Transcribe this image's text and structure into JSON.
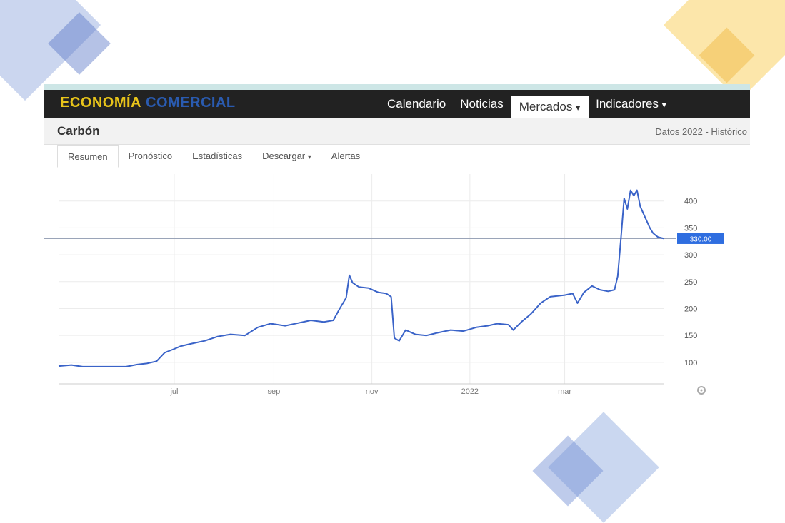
{
  "header": {
    "brand_part1": "ECONOMÍA",
    "brand_part2": "COMERCIAL",
    "nav": [
      "Calendario",
      "Noticias",
      "Mercados",
      "Indicadores"
    ],
    "nav_dropdown_marker": "▾"
  },
  "page": {
    "title": "Carbón",
    "meta": "Datos 2022 - Histórico"
  },
  "tabs": [
    "Resumen",
    "Pronóstico",
    "Estadísticas",
    "Descargar",
    "Alertas"
  ],
  "chart_data": {
    "type": "line",
    "current_value_label": "330.00",
    "current_value": 330,
    "y_ticks": [
      100,
      150,
      200,
      250,
      300,
      350,
      400
    ],
    "ylim": [
      60,
      450
    ],
    "x_ticks": [
      {
        "label": "jul",
        "date": "2021-07-01"
      },
      {
        "label": "sep",
        "date": "2021-09-01"
      },
      {
        "label": "nov",
        "date": "2021-11-01"
      },
      {
        "label": "2022",
        "date": "2022-01-01"
      },
      {
        "label": "mar",
        "date": "2022-03-01"
      }
    ],
    "xlim": [
      "2021-04-20",
      "2022-04-15"
    ],
    "grid": true,
    "series": [
      {
        "color": "#3a63c8",
        "points": [
          [
            "2021-04-20",
            93
          ],
          [
            "2021-04-28",
            95
          ],
          [
            "2021-05-05",
            92
          ],
          [
            "2021-05-20",
            92
          ],
          [
            "2021-06-01",
            92
          ],
          [
            "2021-06-08",
            96
          ],
          [
            "2021-06-14",
            98
          ],
          [
            "2021-06-20",
            102
          ],
          [
            "2021-06-25",
            118
          ],
          [
            "2021-07-01",
            125
          ],
          [
            "2021-07-05",
            130
          ],
          [
            "2021-07-12",
            135
          ],
          [
            "2021-07-20",
            140
          ],
          [
            "2021-07-28",
            148
          ],
          [
            "2021-08-05",
            152
          ],
          [
            "2021-08-14",
            150
          ],
          [
            "2021-08-22",
            165
          ],
          [
            "2021-08-30",
            172
          ],
          [
            "2021-09-08",
            168
          ],
          [
            "2021-09-16",
            173
          ],
          [
            "2021-09-24",
            178
          ],
          [
            "2021-10-02",
            175
          ],
          [
            "2021-10-08",
            178
          ],
          [
            "2021-10-12",
            200
          ],
          [
            "2021-10-16",
            220
          ],
          [
            "2021-10-18",
            262
          ],
          [
            "2021-10-20",
            248
          ],
          [
            "2021-10-24",
            240
          ],
          [
            "2021-10-30",
            238
          ],
          [
            "2021-11-05",
            230
          ],
          [
            "2021-11-10",
            228
          ],
          [
            "2021-11-13",
            222
          ],
          [
            "2021-11-15",
            145
          ],
          [
            "2021-11-18",
            140
          ],
          [
            "2021-11-22",
            160
          ],
          [
            "2021-11-28",
            152
          ],
          [
            "2021-12-05",
            150
          ],
          [
            "2021-12-12",
            155
          ],
          [
            "2021-12-20",
            160
          ],
          [
            "2021-12-28",
            158
          ],
          [
            "2022-01-05",
            165
          ],
          [
            "2022-01-12",
            168
          ],
          [
            "2022-01-18",
            172
          ],
          [
            "2022-01-25",
            170
          ],
          [
            "2022-01-28",
            160
          ],
          [
            "2022-02-02",
            175
          ],
          [
            "2022-02-08",
            190
          ],
          [
            "2022-02-14",
            210
          ],
          [
            "2022-02-20",
            222
          ],
          [
            "2022-03-01",
            225
          ],
          [
            "2022-03-06",
            228
          ],
          [
            "2022-03-09",
            210
          ],
          [
            "2022-03-13",
            230
          ],
          [
            "2022-03-18",
            242
          ],
          [
            "2022-03-23",
            235
          ],
          [
            "2022-03-28",
            232
          ],
          [
            "2022-04-01",
            235
          ],
          [
            "2022-04-03",
            260
          ],
          [
            "2022-04-05",
            330
          ],
          [
            "2022-04-07",
            405
          ],
          [
            "2022-04-09",
            385
          ],
          [
            "2022-04-11",
            420
          ],
          [
            "2022-04-13",
            410
          ],
          [
            "2022-04-15",
            420
          ],
          [
            "2022-04-17",
            390
          ],
          [
            "2022-04-20",
            370
          ],
          [
            "2022-04-23",
            350
          ],
          [
            "2022-04-25",
            340
          ],
          [
            "2022-04-28",
            333
          ],
          [
            "2022-05-02",
            330
          ]
        ]
      }
    ]
  },
  "colors": {
    "nav_bg": "#222222",
    "brand_yellow": "#e8c41a",
    "brand_blue": "#2a5bb0",
    "line": "#3a63c8",
    "price_badge": "#2f6ee0"
  },
  "icons": [
    "settings-gear-icon"
  ]
}
